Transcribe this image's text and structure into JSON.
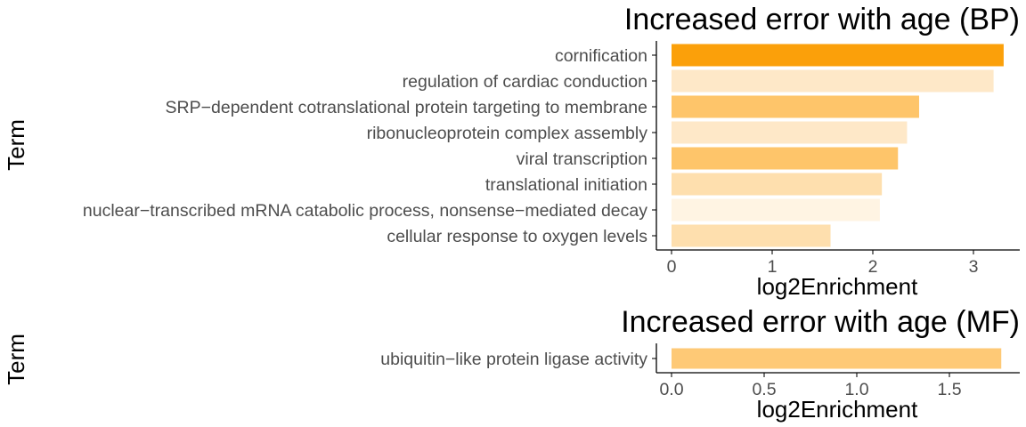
{
  "chart_data": [
    {
      "type": "bar",
      "orientation": "horizontal",
      "title": "Increased error with age (BP)",
      "xlabel": "log2Enrichment",
      "ylabel": "Term",
      "xlim": [
        0,
        3.4
      ],
      "xticks": [
        0,
        1,
        2,
        3
      ],
      "xtick_labels": [
        "0",
        "1",
        "2",
        "3"
      ],
      "grid": false,
      "legend": "none",
      "categories": [
        "cornification",
        "regulation of cardiac conduction",
        "SRP−dependent cotranslational protein targeting to membrane",
        "ribonucleoprotein complex assembly",
        "viral transcription",
        "translational initiation",
        "nuclear−transcribed mRNA catabolic process, nonsense−mediated decay",
        "cellular response to oxygen levels"
      ],
      "values": [
        3.3,
        3.2,
        2.46,
        2.34,
        2.25,
        2.09,
        2.07,
        1.58
      ],
      "colors": [
        "#fba00a",
        "#fee8c8",
        "#fec56a",
        "#fee8c8",
        "#fec56a",
        "#fedfae",
        "#fff4e3",
        "#fedfae"
      ]
    },
    {
      "type": "bar",
      "orientation": "horizontal",
      "title": "Increased error with age (MF)",
      "xlabel": "log2Enrichment",
      "ylabel": "Term",
      "xlim": [
        0,
        1.83
      ],
      "xticks": [
        0,
        0.5,
        1.0,
        1.5
      ],
      "xtick_labels": [
        "0.0",
        "0.5",
        "1.0",
        "1.5"
      ],
      "grid": false,
      "legend": "none",
      "categories": [
        "ubiquitin−like protein ligase activity"
      ],
      "values": [
        1.78
      ],
      "colors": [
        "#fec976"
      ]
    }
  ]
}
